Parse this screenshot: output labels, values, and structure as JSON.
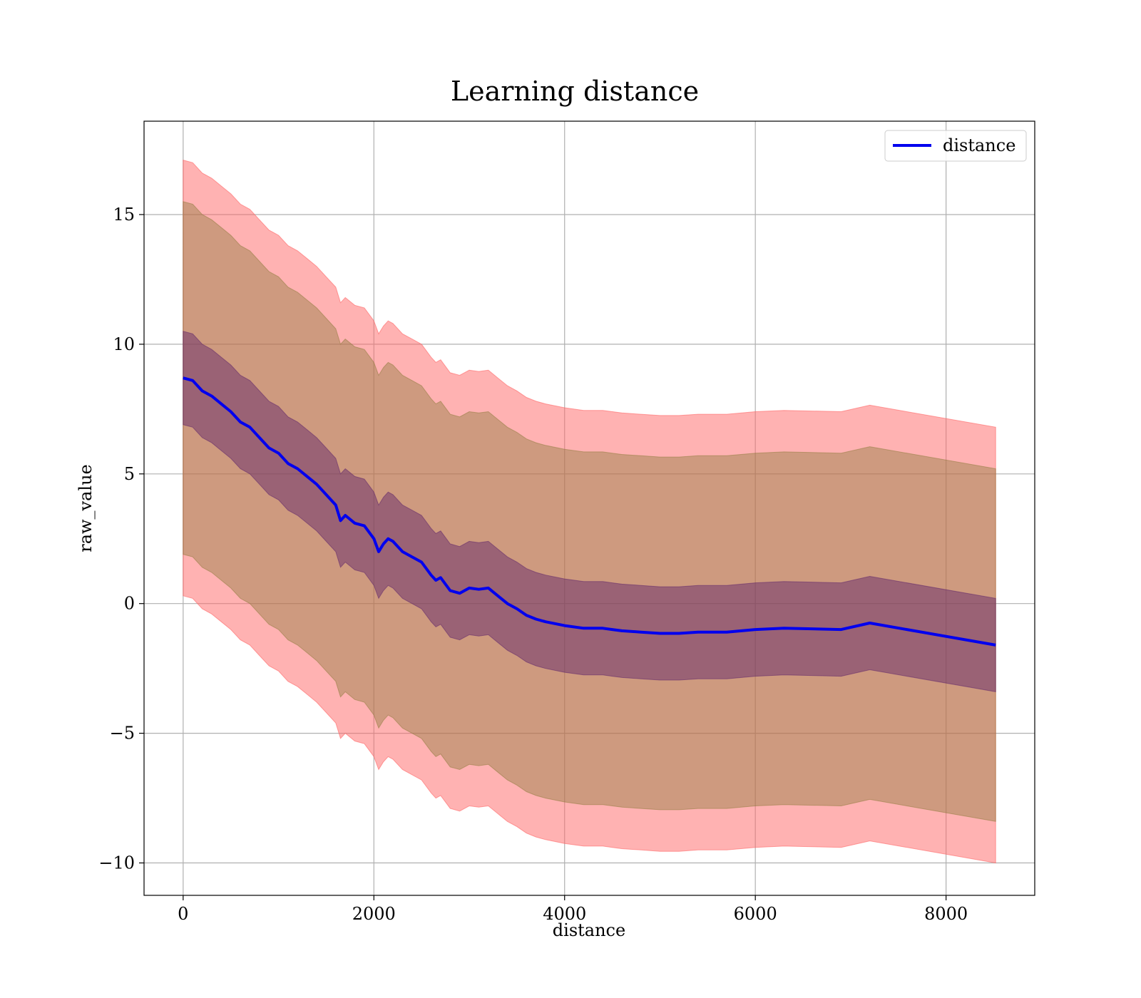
{
  "chart_data": {
    "type": "line",
    "title": "Learning distance",
    "xlabel": "distance",
    "ylabel": "raw_value",
    "xlim": [
      -410,
      8930
    ],
    "ylim": [
      -11.25,
      18.6
    ],
    "xticks": [
      0,
      2000,
      4000,
      6000,
      8000
    ],
    "xtick_labels": [
      "0",
      "2000",
      "4000",
      "6000",
      "8000"
    ],
    "yticks": [
      -10,
      -5,
      0,
      5,
      10,
      15
    ],
    "ytick_labels": [
      "−10",
      "−5",
      "0",
      "5",
      "10",
      "15"
    ],
    "grid": true,
    "legend": {
      "placement": "top-right",
      "entries": [
        "distance"
      ]
    },
    "colors": {
      "line": "#0000ee",
      "band_outer": "#ff6666",
      "band_middle": "#8b7a3a",
      "band_inner": "#5a1f6a"
    },
    "series": [
      {
        "name": "distance",
        "x": [
          0,
          100,
          200,
          300,
          400,
          500,
          600,
          700,
          800,
          900,
          1000,
          1100,
          1200,
          1300,
          1400,
          1500,
          1600,
          1650,
          1700,
          1800,
          1900,
          2000,
          2050,
          2100,
          2150,
          2200,
          2300,
          2400,
          2500,
          2600,
          2650,
          2700,
          2800,
          2900,
          3000,
          3100,
          3200,
          3300,
          3400,
          3500,
          3600,
          3700,
          3800,
          4000,
          4200,
          4400,
          4500,
          4600,
          4800,
          5000,
          5200,
          5400,
          5700,
          6000,
          6300,
          6900,
          7200,
          8520
        ],
        "y": [
          8.7,
          8.6,
          8.2,
          8.0,
          7.7,
          7.4,
          7.0,
          6.8,
          6.4,
          6.0,
          5.8,
          5.4,
          5.2,
          4.9,
          4.6,
          4.2,
          3.8,
          3.2,
          3.4,
          3.1,
          3.0,
          2.5,
          2.0,
          2.3,
          2.5,
          2.4,
          2.0,
          1.8,
          1.6,
          1.1,
          0.9,
          1.0,
          0.5,
          0.4,
          0.6,
          0.55,
          0.6,
          0.3,
          0.0,
          -0.2,
          -0.45,
          -0.6,
          -0.7,
          -0.85,
          -0.95,
          -0.95,
          -1.0,
          -1.05,
          -1.1,
          -1.15,
          -1.15,
          -1.1,
          -1.1,
          -1.0,
          -0.95,
          -1.0,
          -0.75,
          -1.6
        ],
        "band_inner": {
          "lower_offset": -1.8,
          "upper_offset": 1.8
        },
        "band_middle": {
          "lower_offset": -6.8,
          "upper_offset": 6.8
        },
        "band_outer": {
          "lower_offset": -8.4,
          "upper_offset": 8.4
        }
      }
    ]
  }
}
